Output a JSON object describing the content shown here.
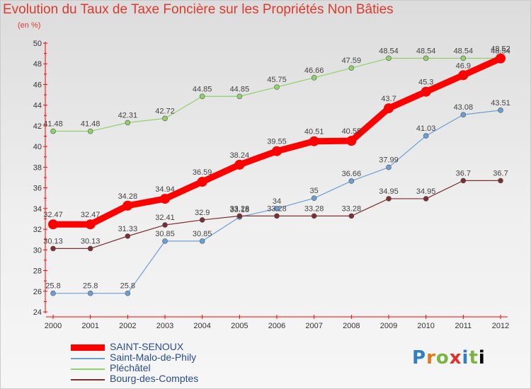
{
  "chart_data": {
    "type": "line",
    "title": "Evolution du Taux de Taxe Foncière sur les Propriétés Non Bâties",
    "subtitle": "(en %)",
    "x": [
      "2000",
      "2001",
      "2002",
      "2003",
      "2004",
      "2005",
      "2006",
      "2007",
      "2008",
      "2009",
      "2010",
      "2011",
      "2012"
    ],
    "ylim": [
      24,
      50
    ],
    "yticks": [
      24,
      26,
      28,
      30,
      32,
      34,
      36,
      38,
      40,
      42,
      44,
      46,
      48,
      50
    ],
    "grid": false,
    "legend_position": "bottom-left",
    "series": [
      {
        "name": "SAINT-SENOUX",
        "color": "#ff0000",
        "values": [
          32.47,
          32.47,
          34.28,
          34.94,
          36.59,
          38.24,
          39.55,
          40.51,
          40.55,
          43.7,
          45.3,
          46.9,
          48.52
        ],
        "labels": [
          "32.47",
          "32.47",
          "34.28",
          "34.94",
          "36.59",
          "38.24",
          "39.55",
          "40.51",
          "40.55",
          "43.7",
          "45.3",
          "46.9",
          "48.52"
        ]
      },
      {
        "name": "Saint-Malo-de-Phily",
        "color": "#6b9fd4",
        "values": [
          25.8,
          25.8,
          25.8,
          30.85,
          30.85,
          33.18,
          34,
          35,
          36.66,
          37.99,
          41.03,
          43.08,
          43.51
        ],
        "labels": [
          "25.8",
          "25.8",
          "25.8",
          "30.85",
          "30.85",
          "33.18",
          "34",
          "35",
          "36.66",
          "37.99",
          "41.03",
          "43.08",
          "43.51"
        ]
      },
      {
        "name": "Pléchâtel",
        "color": "#8fd16a",
        "values": [
          41.48,
          41.48,
          42.31,
          42.72,
          44.85,
          44.85,
          45.75,
          46.66,
          47.59,
          48.54,
          48.54,
          48.54,
          48.54
        ],
        "labels": [
          "41.48",
          "41.48",
          "42.31",
          "42.72",
          "44.85",
          "44.85",
          "45.75",
          "46.66",
          "47.59",
          "48.54",
          "48.54",
          "48.54",
          "48.54"
        ]
      },
      {
        "name": "Bourg-des-Comptes",
        "color": "#7b2f2f",
        "values": [
          30.13,
          30.13,
          31.33,
          32.41,
          32.9,
          33.28,
          33.28,
          33.28,
          33.28,
          34.95,
          34.95,
          36.7,
          36.7
        ],
        "labels": [
          "30.13",
          "30.13",
          "31.33",
          "32.41",
          "32.9",
          "33.28",
          "33.28",
          "33.28",
          "33.28",
          "34.95",
          "34.95",
          "36.7",
          "36.7"
        ]
      }
    ]
  },
  "logo": {
    "letters": [
      "P",
      "r",
      "o",
      "x",
      "i",
      "t",
      "i"
    ],
    "text": "Proxiti"
  }
}
